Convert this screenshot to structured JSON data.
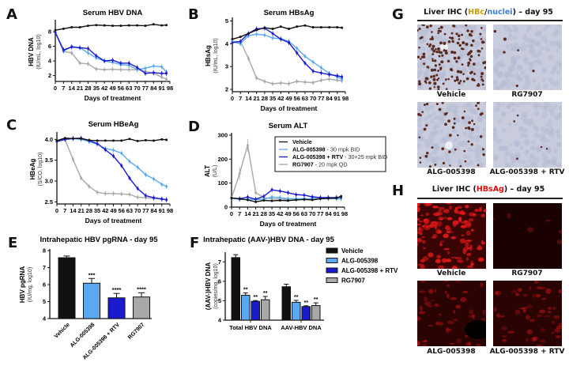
{
  "panels": {
    "A": "A",
    "B": "B",
    "C": "C",
    "D": "D",
    "E": "E",
    "F": "F",
    "G": "G",
    "H": "H"
  },
  "colors": {
    "vehicle": "#111111",
    "alg": "#5aa9f0",
    "alg_rtv": "#1a1ad0",
    "rg": "#a8a8a8"
  },
  "chart_data": [
    {
      "id": "A",
      "type": "line",
      "title": "Serum HBV DNA",
      "xlabel": "Days of treatment",
      "ylabel": "HBV DNA",
      "ylabel_units": "(IU/mL, log10)",
      "x_ticks": [
        "0",
        "7",
        "14",
        "21",
        "28",
        "35",
        "42",
        "49",
        "56",
        "63",
        "70",
        "77",
        "84",
        "91",
        "98"
      ],
      "y_ticks": [
        "2",
        "4",
        "6",
        "8"
      ],
      "xlim": [
        0,
        98
      ],
      "ylim": [
        1.2,
        9.3
      ],
      "x": [
        0,
        7,
        14,
        21,
        28,
        35,
        42,
        49,
        56,
        63,
        70,
        77,
        84,
        91,
        95
      ],
      "series": [
        {
          "name": "Vehicle",
          "key": "vehicle",
          "values": [
            8.2,
            8.4,
            8.6,
            8.6,
            8.8,
            8.9,
            8.85,
            8.8,
            8.8,
            8.85,
            8.85,
            8.8,
            9.0,
            8.85,
            8.9
          ]
        },
        {
          "name": "ALG-005398",
          "key": "alg",
          "values": [
            7.9,
            5.3,
            6.0,
            5.8,
            5.1,
            4.4,
            4.0,
            3.8,
            3.5,
            3.4,
            2.8,
            3.0,
            3.3,
            3.2,
            2.5
          ]
        },
        {
          "name": "ALG-005398 + RTV",
          "key": "alg_rtv",
          "values": [
            7.9,
            5.5,
            5.9,
            5.8,
            5.7,
            4.7,
            4.0,
            4.1,
            3.7,
            3.7,
            3.1,
            2.3,
            2.4,
            2.3,
            2.3
          ]
        },
        {
          "name": "RG7907",
          "key": "rg",
          "values": [
            7.9,
            5.3,
            5.1,
            3.7,
            3.6,
            2.9,
            2.8,
            2.85,
            2.8,
            2.8,
            2.8,
            2.6,
            2.3,
            1.8,
            1.5
          ]
        }
      ]
    },
    {
      "id": "B",
      "type": "line",
      "title": "Serum HBsAg",
      "xlabel": "Days of treatment",
      "ylabel": "HBsAg",
      "ylabel_units": "(IU/mL, log10)",
      "x_ticks": [
        "0",
        "7",
        "14",
        "21",
        "28",
        "35",
        "42",
        "49",
        "56",
        "63",
        "70",
        "77",
        "84",
        "91",
        "98"
      ],
      "y_ticks": [
        "2",
        "3",
        "4",
        "5"
      ],
      "xlim": [
        0,
        98
      ],
      "ylim": [
        1.9,
        5.05
      ],
      "x": [
        0,
        7,
        14,
        21,
        28,
        35,
        42,
        49,
        56,
        63,
        70,
        77,
        84,
        91,
        95
      ],
      "series": [
        {
          "name": "Vehicle",
          "key": "vehicle",
          "values": [
            4.2,
            4.3,
            4.45,
            4.6,
            4.7,
            4.65,
            4.75,
            4.65,
            4.75,
            4.8,
            4.72,
            4.72,
            4.72,
            4.72,
            4.7
          ]
        },
        {
          "name": "ALG-005398",
          "key": "alg",
          "values": [
            4.1,
            4.0,
            4.35,
            4.42,
            4.38,
            4.25,
            4.22,
            4.1,
            3.8,
            3.45,
            3.2,
            2.95,
            2.7,
            2.55,
            2.45
          ]
        },
        {
          "name": "ALG-005398 + RTV",
          "key": "alg_rtv",
          "values": [
            4.05,
            4.1,
            4.45,
            4.65,
            4.68,
            4.45,
            4.2,
            4.05,
            3.6,
            3.15,
            2.8,
            2.72,
            2.65,
            2.6,
            2.55
          ]
        },
        {
          "name": "RG7907",
          "key": "rg",
          "values": [
            4.1,
            4.1,
            3.35,
            2.5,
            2.35,
            2.25,
            2.28,
            2.25,
            2.35,
            2.32,
            2.3,
            2.4,
            2.45,
            2.4,
            2.38
          ]
        }
      ]
    },
    {
      "id": "C",
      "type": "line",
      "title": "Serum HBeAg",
      "xlabel": "Days of treatment",
      "ylabel": "HBeAg",
      "ylabel_units": "(S/CO, log10)",
      "x_ticks": [
        "0",
        "7",
        "14",
        "21",
        "28",
        "35",
        "42",
        "49",
        "56",
        "63",
        "70",
        "77",
        "84",
        "91",
        "98"
      ],
      "y_ticks": [
        "2.5",
        "3.0",
        "3.5",
        "4.0"
      ],
      "xlim": [
        0,
        98
      ],
      "ylim": [
        2.45,
        4.12
      ],
      "x": [
        0,
        7,
        14,
        21,
        28,
        35,
        42,
        49,
        56,
        63,
        70,
        77,
        84,
        91,
        95
      ],
      "series": [
        {
          "name": "Vehicle",
          "key": "vehicle",
          "values": [
            3.97,
            4.03,
            4.02,
            4.02,
            3.98,
            3.97,
            3.97,
            3.97,
            3.97,
            4.01,
            3.96,
            3.98,
            3.97,
            4.0,
            3.99
          ]
        },
        {
          "name": "ALG-005398",
          "key": "alg",
          "values": [
            3.95,
            4.0,
            4.02,
            4.0,
            3.95,
            3.88,
            3.78,
            3.74,
            3.67,
            3.47,
            3.33,
            3.15,
            3.05,
            2.92,
            2.87
          ]
        },
        {
          "name": "ALG-005398 + RTV",
          "key": "alg_rtv",
          "values": [
            3.95,
            4.0,
            4.02,
            4.03,
            3.97,
            3.9,
            3.75,
            3.6,
            3.37,
            3.07,
            2.82,
            2.65,
            2.6,
            2.57,
            2.55
          ]
        },
        {
          "name": "RG7907",
          "key": "rg",
          "values": [
            3.95,
            4.0,
            3.52,
            3.07,
            2.87,
            2.73,
            2.7,
            2.7,
            2.69,
            2.68,
            2.61,
            2.6,
            2.58,
            2.56,
            2.55
          ]
        }
      ]
    },
    {
      "id": "D",
      "type": "line",
      "title": "Serum ALT",
      "xlabel": "Days of treatment",
      "ylabel": "ALT",
      "ylabel_units": "(U/L)",
      "x_ticks": [
        "0",
        "7",
        "14",
        "21",
        "28",
        "35",
        "42",
        "49",
        "56",
        "63",
        "70",
        "77",
        "84",
        "91",
        "98"
      ],
      "y_ticks": [
        "0",
        "100",
        "200",
        "300"
      ],
      "xlim": [
        0,
        98
      ],
      "ylim": [
        0,
        300
      ],
      "x": [
        0,
        7,
        14,
        21,
        28,
        35,
        42,
        49,
        56,
        63,
        70,
        77,
        84,
        91,
        95
      ],
      "legend": [
        {
          "key": "vehicle",
          "name": "Vehicle",
          "dose": ""
        },
        {
          "key": "alg",
          "name": "ALG-005398",
          "dose": " - 30 mpk BID"
        },
        {
          "key": "alg_rtv",
          "name": "ALG-005398 + RTV",
          "dose": " - 30+25 mpk BID"
        },
        {
          "key": "rg",
          "name": "RG7907",
          "dose": " - 20 mpk QD"
        }
      ],
      "legend_position": "top-right",
      "series": [
        {
          "name": "Vehicle",
          "key": "vehicle",
          "values": [
            38,
            35,
            30,
            22,
            28,
            26,
            28,
            27,
            30,
            32,
            30,
            35,
            37,
            38,
            45
          ]
        },
        {
          "name": "ALG-005398",
          "key": "alg",
          "values": [
            38,
            32,
            32,
            32,
            33,
            42,
            40,
            35,
            35,
            35,
            35,
            35,
            35,
            35,
            35
          ]
        },
        {
          "name": "ALG-005398 + RTV",
          "key": "alg_rtv",
          "values": [
            38,
            35,
            42,
            33,
            45,
            72,
            67,
            60,
            52,
            50,
            43,
            40,
            40,
            40,
            42
          ]
        },
        {
          "name": "RG7907",
          "key": "rg",
          "values": [
            38,
            140,
            258,
            60,
            40,
            35,
            33,
            32,
            33,
            33,
            35,
            37,
            38,
            40,
            40
          ]
        }
      ]
    },
    {
      "id": "E",
      "type": "bar",
      "title": "Intrahepatic HBV pgRNA - day 95",
      "ylabel": "HBV pgRNA",
      "ylabel_units": "(IU/mg, log10)",
      "y_ticks": [
        "4",
        "5",
        "6",
        "7",
        "8"
      ],
      "ylim": [
        4,
        8
      ],
      "categories": [
        "Vehicle",
        "ALG-005398",
        "ALG-005398 + RTV",
        "RG7907"
      ],
      "keys": [
        "vehicle",
        "alg",
        "alg_rtv",
        "rg"
      ],
      "values": [
        7.58,
        6.08,
        5.22,
        5.27
      ],
      "errors": [
        0.1,
        0.28,
        0.26,
        0.25
      ],
      "annotations": [
        "",
        "***",
        "****",
        "****"
      ]
    },
    {
      "id": "F",
      "type": "bar",
      "title": "Intrahepatic (AAV-)HBV DNA - day 95",
      "ylabel": "(AAV-)HBV DNA",
      "ylabel_units": "(copies/mg, log10)",
      "y_ticks": [
        "4",
        "5",
        "6",
        "7"
      ],
      "ylim": [
        4,
        7.5
      ],
      "categories": [
        "Total HBV DNA",
        "AAV-HBV DNA"
      ],
      "legend": [
        "Vehicle",
        "ALG-005398",
        "ALG-005398 + RTV",
        "RG7907"
      ],
      "legend_position": "top-right",
      "series": [
        {
          "name": "Vehicle",
          "key": "vehicle",
          "values": [
            7.22,
            5.72
          ],
          "errors": [
            0.15,
            0.13
          ],
          "annotations": [
            "",
            ""
          ]
        },
        {
          "name": "ALG-005398",
          "key": "alg",
          "values": [
            5.28,
            4.92
          ],
          "errors": [
            0.12,
            0.1
          ],
          "annotations": [
            "**",
            "**"
          ]
        },
        {
          "name": "ALG-005398 + RTV",
          "key": "alg_rtv",
          "values": [
            4.97,
            4.7
          ],
          "errors": [
            0.04,
            0.04
          ],
          "annotations": [
            "**",
            "**"
          ]
        },
        {
          "name": "RG7907",
          "key": "rg",
          "values": [
            5.05,
            4.75
          ],
          "errors": [
            0.17,
            0.14
          ],
          "annotations": [
            "**",
            "**"
          ]
        }
      ]
    }
  ],
  "ihc_G": {
    "title_pre": "Liver IHC (",
    "title_hbc": "HBc",
    "title_sep": "/",
    "title_nuclei": "nuclei",
    "title_post": ") – day 95",
    "captions": [
      "Vehicle",
      "RG7907",
      "ALG-005398",
      "ALG-005398 + RTV"
    ]
  },
  "ihc_H": {
    "title_pre": "Liver IHC (",
    "title_hbsag": "HBsAg",
    "title_post": ") – day 95",
    "captions": [
      "Vehicle",
      "RG7907",
      "ALG-005398",
      "ALG-005398 + RTV"
    ]
  }
}
